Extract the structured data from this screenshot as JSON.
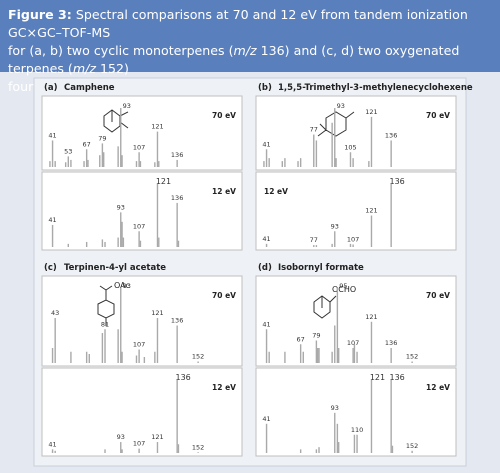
{
  "figure": {
    "label": "Figure 3:",
    "caption": [
      "Spectral comparisons at 70 and 12 eV from tandem ionization GC×GC–TOF-MS",
      "for (a, b) two cyclic monoterpenes (",
      "m/z",
      " 136) and (c, d) two oxygenated terpenes (",
      "m/z",
      " 152)",
      "found in essential oils."
    ]
  },
  "chart_data": [
    {
      "type": "bar",
      "panel": "(a)",
      "title": "Camphene",
      "energy": "70 eV",
      "label_corner": "top-right",
      "color": "#a9a9a9",
      "xlim": [
        36,
        158
      ],
      "ylim": [
        0,
        100
      ],
      "x": [
        39,
        41,
        43,
        51,
        53,
        55,
        65,
        67,
        68,
        77,
        79,
        80,
        91,
        93,
        94,
        105,
        107,
        108,
        119,
        121,
        122,
        136
      ],
      "values": [
        10,
        45,
        10,
        8,
        18,
        12,
        10,
        30,
        12,
        20,
        40,
        25,
        35,
        100,
        20,
        10,
        25,
        10,
        8,
        60,
        10,
        12
      ],
      "annotations": [
        41,
        53,
        67,
        79,
        93,
        107,
        121,
        136
      ]
    },
    {
      "type": "bar",
      "energy": "12 eV",
      "label_corner": "top-right",
      "color": "#a9a9a9",
      "xlim": [
        36,
        158
      ],
      "ylim": [
        0,
        100
      ],
      "x": [
        41,
        53,
        67,
        79,
        81,
        91,
        93,
        94,
        95,
        107,
        108,
        121,
        122,
        136,
        137
      ],
      "values": [
        35,
        5,
        8,
        12,
        8,
        15,
        55,
        40,
        15,
        25,
        10,
        100,
        15,
        70,
        10
      ],
      "annotations": [
        41,
        93,
        107,
        121,
        136
      ]
    },
    {
      "type": "bar",
      "panel": "(b)",
      "title": "1,5,5-Trimethyl-3-methylenecyclohexene",
      "energy": "70 eV",
      "label_corner": "top-right",
      "color": "#a9a9a9",
      "xlim": [
        36,
        158
      ],
      "ylim": [
        0,
        100
      ],
      "x": [
        39,
        41,
        43,
        53,
        55,
        65,
        67,
        77,
        79,
        91,
        93,
        94,
        105,
        107,
        119,
        121,
        136
      ],
      "values": [
        10,
        30,
        15,
        10,
        15,
        10,
        15,
        55,
        45,
        75,
        100,
        15,
        25,
        15,
        10,
        85,
        45
      ],
      "annotations": [
        41,
        77,
        93,
        105,
        121,
        136
      ]
    },
    {
      "type": "bar",
      "energy": "12 eV",
      "label_corner": "top-left",
      "color": "#a9a9a9",
      "xlim": [
        36,
        158
      ],
      "ylim": [
        0,
        100
      ],
      "x": [
        41,
        77,
        79,
        91,
        93,
        105,
        107,
        121,
        136
      ],
      "values": [
        5,
        3,
        3,
        5,
        25,
        5,
        4,
        50,
        100
      ],
      "annotations": [
        41,
        77,
        93,
        107,
        121,
        136
      ]
    },
    {
      "type": "bar",
      "panel": "(c)",
      "title": "Terpinen-4-yl acetate",
      "structure_label": "OAc",
      "energy": "70 eV",
      "label_corner": "top-right",
      "color": "#a9a9a9",
      "xlim": [
        36,
        158
      ],
      "ylim": [
        0,
        100
      ],
      "x": [
        41,
        43,
        55,
        67,
        69,
        79,
        81,
        91,
        93,
        94,
        105,
        107,
        111,
        119,
        121,
        136,
        152
      ],
      "values": [
        20,
        60,
        15,
        15,
        12,
        40,
        45,
        45,
        100,
        15,
        10,
        18,
        8,
        15,
        60,
        50,
        2
      ],
      "annotations": [
        43,
        81,
        93,
        107,
        121,
        136,
        152
      ]
    },
    {
      "type": "bar",
      "energy": "12 eV",
      "label_corner": "top-right",
      "color": "#a9a9a9",
      "xlim": [
        36,
        158
      ],
      "ylim": [
        0,
        100
      ],
      "x": [
        41,
        43,
        81,
        93,
        94,
        107,
        121,
        136,
        137,
        152
      ],
      "values": [
        5,
        3,
        5,
        15,
        5,
        6,
        15,
        100,
        12,
        1
      ],
      "annotations": [
        41,
        93,
        107,
        121,
        136,
        152
      ]
    },
    {
      "type": "bar",
      "panel": "(d)",
      "title": "Isobornyl formate",
      "structure_label": "OCHO",
      "energy": "70 eV",
      "label_corner": "top-right",
      "color": "#a9a9a9",
      "xlim": [
        36,
        158
      ],
      "ylim": [
        0,
        100
      ],
      "x": [
        41,
        43,
        55,
        67,
        69,
        79,
        80,
        81,
        91,
        93,
        95,
        96,
        107,
        108,
        110,
        121,
        136,
        152
      ],
      "values": [
        45,
        15,
        15,
        25,
        15,
        30,
        20,
        20,
        15,
        50,
        100,
        20,
        20,
        25,
        15,
        55,
        20,
        2
      ],
      "annotations": [
        41,
        67,
        79,
        95,
        107,
        121,
        136,
        152
      ]
    },
    {
      "type": "bar",
      "energy": "12 eV",
      "label_corner": "top-right",
      "color": "#a9a9a9",
      "xlim": [
        36,
        158
      ],
      "ylim": [
        0,
        100
      ],
      "x": [
        41,
        67,
        79,
        81,
        93,
        95,
        96,
        108,
        110,
        121,
        136,
        137,
        152
      ],
      "values": [
        40,
        5,
        5,
        8,
        55,
        40,
        15,
        25,
        25,
        100,
        100,
        10,
        3
      ],
      "annotations": [
        41,
        93,
        110,
        121,
        136,
        152
      ]
    }
  ]
}
